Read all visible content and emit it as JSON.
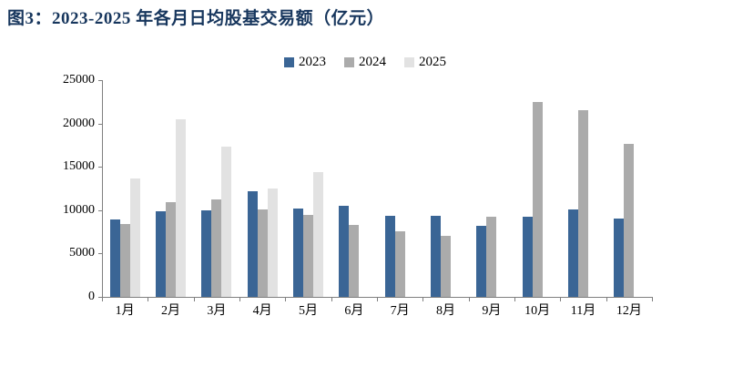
{
  "title": "图3：2023-2025 年各月日均股基交易额（亿元）",
  "colors": {
    "title_navy": "#17365D",
    "axis_gray": "#7f7f7f",
    "series_2023": "#3A6595",
    "series_2024": "#ABABAB",
    "series_2025": "#E2E2E2"
  },
  "chart_data": {
    "type": "bar",
    "title": "图3：2023-2025 年各月日均股基交易额（亿元）",
    "xlabel": "",
    "ylabel": "",
    "categories": [
      "1月",
      "2月",
      "3月",
      "4月",
      "5月",
      "6月",
      "7月",
      "8月",
      "9月",
      "10月",
      "11月",
      "12月"
    ],
    "series": [
      {
        "name": "2023",
        "color": "#3A6595",
        "values": [
          8900,
          9900,
          9950,
          12200,
          10150,
          10500,
          9350,
          9350,
          8150,
          9200,
          10050,
          9000
        ]
      },
      {
        "name": "2024",
        "color": "#ABABAB",
        "values": [
          8450,
          10950,
          11200,
          10100,
          9450,
          8300,
          7600,
          7000,
          9250,
          22500,
          21500,
          17700
        ]
      },
      {
        "name": "2025",
        "color": "#E2E2E2",
        "values": [
          13700,
          20450,
          17350,
          12450,
          14350,
          null,
          null,
          null,
          null,
          null,
          null,
          null
        ]
      }
    ],
    "ylim": [
      0,
      25000
    ],
    "yticks": [
      0,
      5000,
      10000,
      15000,
      20000,
      25000
    ],
    "grid": false,
    "legend_position": "top-center"
  }
}
